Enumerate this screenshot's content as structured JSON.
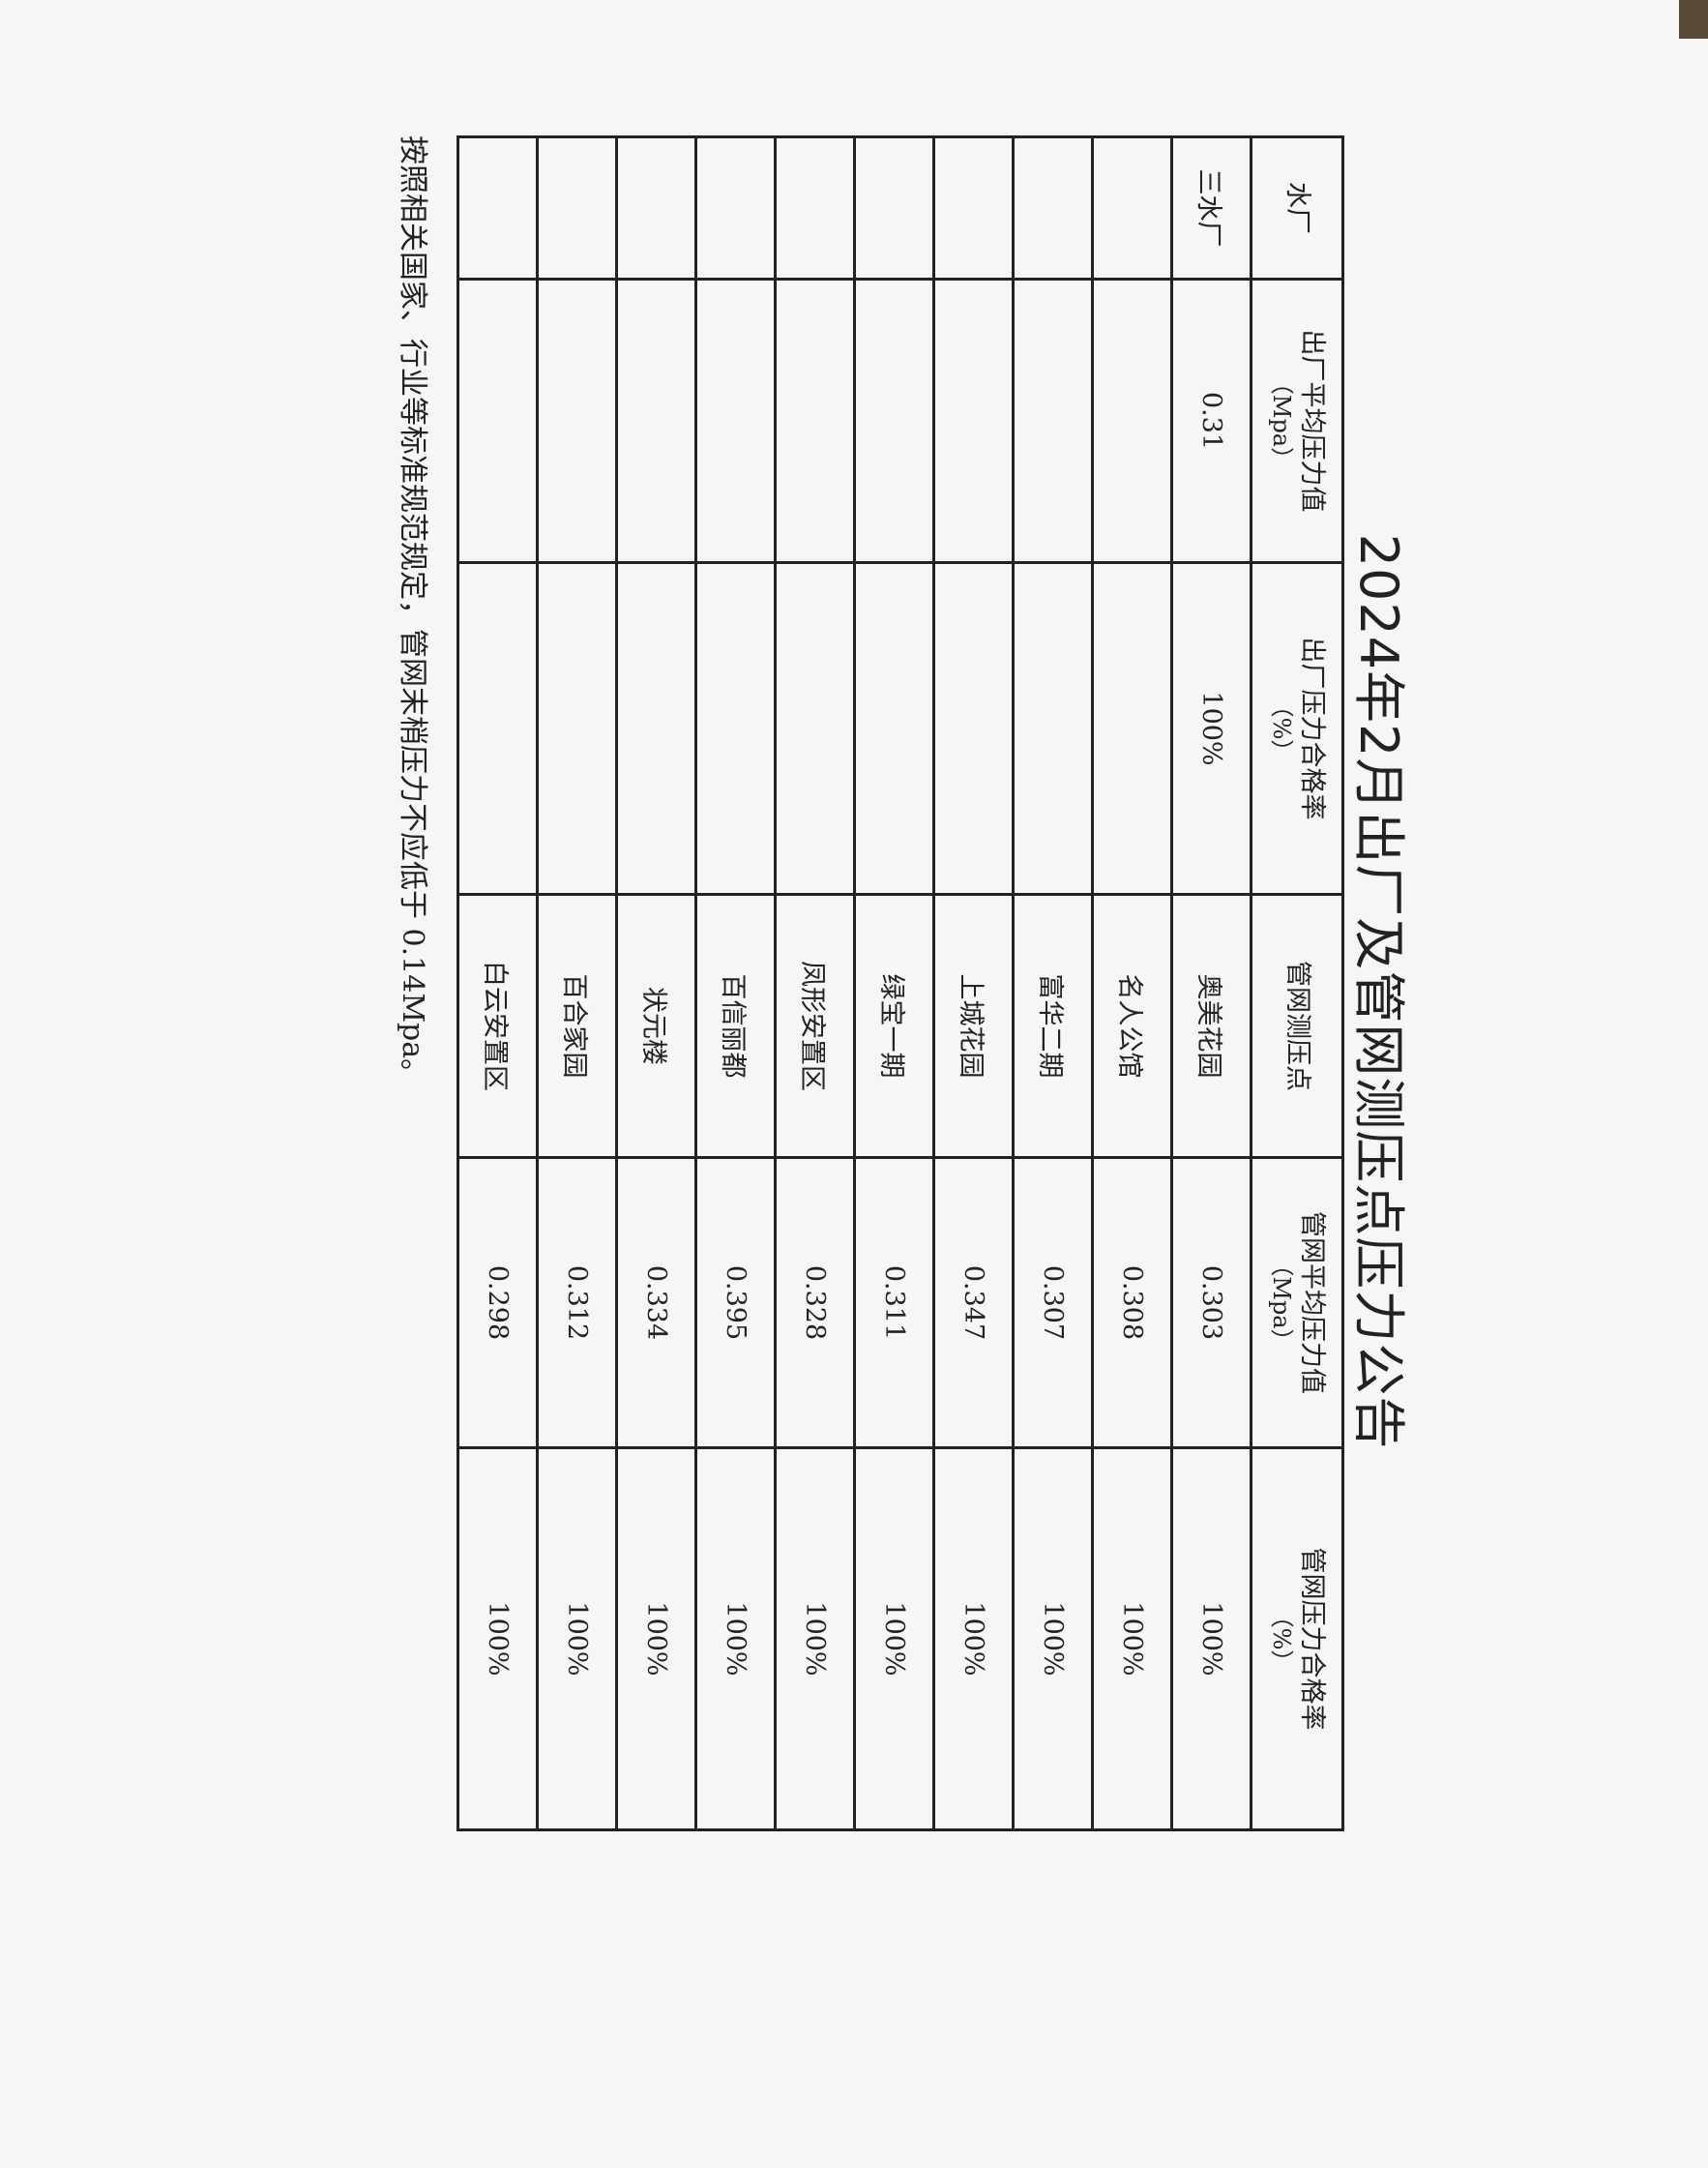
{
  "title": "2024年2月出厂及管网测压点压力公告",
  "headers": [
    {
      "line1": "水厂",
      "line2": ""
    },
    {
      "line1": "出厂平均压力值",
      "line2": "（Mpa）"
    },
    {
      "line1": "出厂压力合格率",
      "line2": "（%）"
    },
    {
      "line1": "管网测压点",
      "line2": ""
    },
    {
      "line1": "管网平均压力值",
      "line2": "（Mpa）"
    },
    {
      "line1": "管网压力合格率",
      "line2": "（%）"
    }
  ],
  "plant": {
    "name": "三水厂",
    "avg_pressure": "0.31",
    "pass_rate": "100%"
  },
  "rows": [
    {
      "point": "奥美花园",
      "avg": "0.303",
      "rate": "100%"
    },
    {
      "point": "名人公馆",
      "avg": "0.308",
      "rate": "100%"
    },
    {
      "point": "富华二期",
      "avg": "0.307",
      "rate": "100%"
    },
    {
      "point": "上城花园",
      "avg": "0.347",
      "rate": "100%"
    },
    {
      "point": "绿宝一期",
      "avg": "0.311",
      "rate": "100%"
    },
    {
      "point": "凤形安置区",
      "avg": "0.328",
      "rate": "100%"
    },
    {
      "point": "百信丽都",
      "avg": "0.395",
      "rate": "100%"
    },
    {
      "point": "状元楼",
      "avg": "0.334",
      "rate": "100%"
    },
    {
      "point": "百合家园",
      "avg": "0.312",
      "rate": "100%"
    },
    {
      "point": "白云安置区",
      "avg": "0.298",
      "rate": "100%"
    }
  ],
  "footnote": "按照相关国家、行业等标准规范规定，管网末梢压力不应低于 0.14Mpa。"
}
